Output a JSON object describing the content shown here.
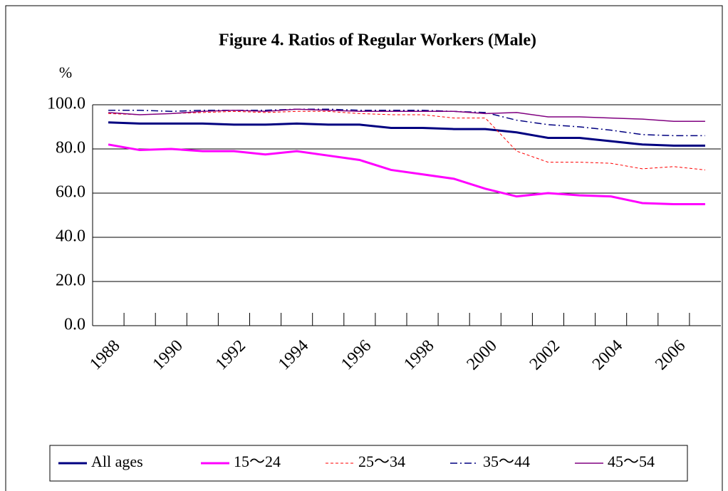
{
  "chart_data": {
    "type": "line",
    "title": "Figure 4. Ratios of Regular Workers (Male)",
    "y_label": "%",
    "categories": [
      "1988",
      null,
      "1990",
      null,
      "1992",
      null,
      "1994",
      null,
      "1996",
      null,
      "1998",
      null,
      "2000",
      null,
      "2002",
      null,
      "2004",
      null,
      "2006",
      null
    ],
    "series": [
      {
        "name": "All ages",
        "color": "#000080",
        "dash": "solid",
        "width": 3,
        "values": [
          92,
          91.5,
          91.5,
          91.5,
          91,
          91,
          91.5,
          91,
          91,
          89.5,
          89.5,
          89,
          89,
          87.5,
          85,
          85,
          83.5,
          82,
          81.5,
          81.5
        ]
      },
      {
        "name": "15～24",
        "color": "#ff00ff",
        "dash": "solid",
        "width": 3,
        "values": [
          82,
          79.5,
          80,
          79,
          79,
          77.5,
          79,
          77,
          75,
          70.5,
          68.5,
          66.5,
          62,
          58.5,
          60,
          59,
          58.5,
          55.5,
          55,
          55
        ]
      },
      {
        "name": "25～34",
        "color": "#ff0000",
        "dash": "dashed",
        "width": 1,
        "values": [
          96,
          95.5,
          96,
          96.5,
          97,
          96.5,
          97,
          97,
          96,
          95.5,
          95.5,
          94,
          94,
          79,
          74,
          74,
          73.5,
          71,
          72,
          70.5
        ]
      },
      {
        "name": "35～44",
        "color": "#000080",
        "dash": "dashdot",
        "width": 1.5,
        "values": [
          97.5,
          97.5,
          97,
          97.5,
          97.5,
          97.5,
          98,
          98,
          97.5,
          97.5,
          97.5,
          97,
          96.5,
          93,
          91,
          90,
          88.5,
          86.5,
          86,
          86
        ]
      },
      {
        "name": "45～54",
        "color": "#800080",
        "dash": "solid",
        "width": 1.5,
        "values": [
          96.5,
          95.5,
          96,
          97,
          97.5,
          97,
          98,
          97.5,
          97,
          97,
          97,
          97,
          96,
          96.5,
          94.5,
          94.5,
          94,
          93.5,
          92.5,
          92.5
        ]
      }
    ],
    "ylim": [
      0,
      100
    ],
    "yticks": [
      {
        "value": 0,
        "label": "0.0"
      },
      {
        "value": 20,
        "label": "20.0"
      },
      {
        "value": 40,
        "label": "40.0"
      },
      {
        "value": 60,
        "label": "60.0"
      },
      {
        "value": 80,
        "label": "80.0"
      },
      {
        "value": 100,
        "label": "100.0"
      }
    ],
    "grid": true,
    "legend": "bottom"
  }
}
